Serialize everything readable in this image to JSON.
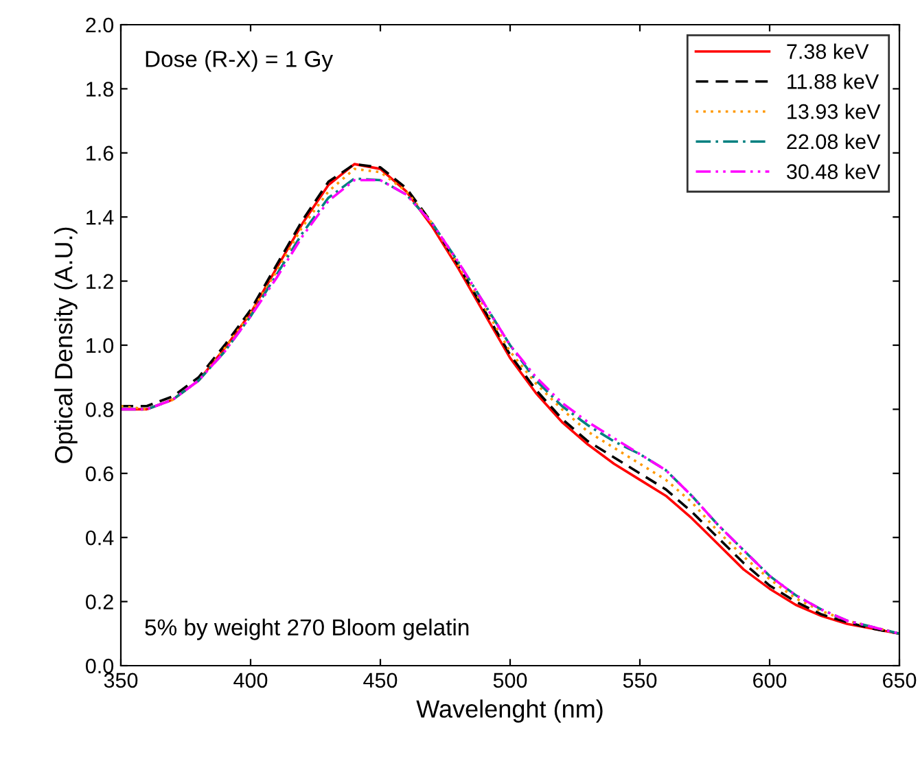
{
  "chart_data": {
    "type": "line",
    "xlabel": "Wavelenght (nm)",
    "ylabel": "Optical Density (A.U.)",
    "x": [
      350,
      360,
      370,
      380,
      390,
      400,
      410,
      420,
      430,
      440,
      450,
      460,
      470,
      480,
      490,
      500,
      510,
      520,
      530,
      540,
      550,
      560,
      570,
      580,
      590,
      600,
      610,
      620,
      630,
      640,
      650
    ],
    "series": [
      {
        "name": "7.38 keV",
        "color": "#ff0000",
        "line_style": "solid",
        "values": [
          0.8,
          0.8,
          0.83,
          0.89,
          0.99,
          1.1,
          1.24,
          1.38,
          1.5,
          1.565,
          1.55,
          1.48,
          1.37,
          1.24,
          1.1,
          0.96,
          0.85,
          0.76,
          0.69,
          0.63,
          0.58,
          0.53,
          0.46,
          0.38,
          0.3,
          0.24,
          0.19,
          0.155,
          0.13,
          0.115,
          0.1
        ]
      },
      {
        "name": "11.88 keV",
        "color": "#000000",
        "line_style": "dashed",
        "values": [
          0.81,
          0.81,
          0.84,
          0.9,
          1.0,
          1.11,
          1.25,
          1.39,
          1.51,
          1.565,
          1.555,
          1.49,
          1.38,
          1.25,
          1.11,
          0.97,
          0.86,
          0.77,
          0.7,
          0.65,
          0.6,
          0.55,
          0.48,
          0.4,
          0.32,
          0.25,
          0.2,
          0.16,
          0.135,
          0.115,
          0.1
        ]
      },
      {
        "name": "13.93 keV",
        "color": "#ff9900",
        "line_style": "dotted",
        "values": [
          0.81,
          0.8,
          0.83,
          0.89,
          0.99,
          1.1,
          1.23,
          1.37,
          1.48,
          1.55,
          1.54,
          1.48,
          1.38,
          1.25,
          1.12,
          0.98,
          0.88,
          0.8,
          0.73,
          0.68,
          0.63,
          0.58,
          0.51,
          0.42,
          0.34,
          0.27,
          0.21,
          0.17,
          0.14,
          0.12,
          0.1
        ]
      },
      {
        "name": "22.08 keV",
        "color": "#008080",
        "line_style": "dashdot",
        "values": [
          0.8,
          0.8,
          0.83,
          0.89,
          0.98,
          1.09,
          1.22,
          1.35,
          1.46,
          1.52,
          1.515,
          1.47,
          1.38,
          1.26,
          1.13,
          1.0,
          0.89,
          0.81,
          0.75,
          0.7,
          0.66,
          0.61,
          0.53,
          0.44,
          0.36,
          0.28,
          0.22,
          0.175,
          0.14,
          0.12,
          0.1
        ]
      },
      {
        "name": "30.48 keV",
        "color": "#ff00ff",
        "line_style": "dashdotdot",
        "values": [
          0.8,
          0.8,
          0.83,
          0.89,
          0.98,
          1.09,
          1.21,
          1.34,
          1.45,
          1.515,
          1.515,
          1.47,
          1.38,
          1.26,
          1.13,
          1.0,
          0.9,
          0.82,
          0.76,
          0.71,
          0.66,
          0.61,
          0.53,
          0.44,
          0.36,
          0.28,
          0.22,
          0.175,
          0.14,
          0.12,
          0.1
        ]
      }
    ],
    "xlim": [
      350,
      650
    ],
    "xticks": [
      350,
      400,
      450,
      500,
      550,
      600,
      650
    ],
    "ylim": [
      0,
      2.0
    ],
    "yticks": [
      {
        "value": 0,
        "label": "0.0"
      },
      {
        "value": 0.2,
        "label": "0.2"
      },
      {
        "value": 0.4,
        "label": "0.4"
      },
      {
        "value": 0.6,
        "label": "0.6"
      },
      {
        "value": 0.8,
        "label": "0.8"
      },
      {
        "value": 1.0,
        "label": "1.0"
      },
      {
        "value": 1.2,
        "label": "1.2"
      },
      {
        "value": 1.4,
        "label": "1.4"
      },
      {
        "value": 1.6,
        "label": "1.6"
      },
      {
        "value": 1.8,
        "label": "1.8"
      },
      {
        "value": 2.0,
        "label": "2.0"
      }
    ],
    "annotations": [
      "Dose (R-X) = 1 Gy",
      "5% by weight 270 Bloom gelatin"
    ],
    "legend": "top right",
    "grid": false,
    "marker": "none"
  }
}
